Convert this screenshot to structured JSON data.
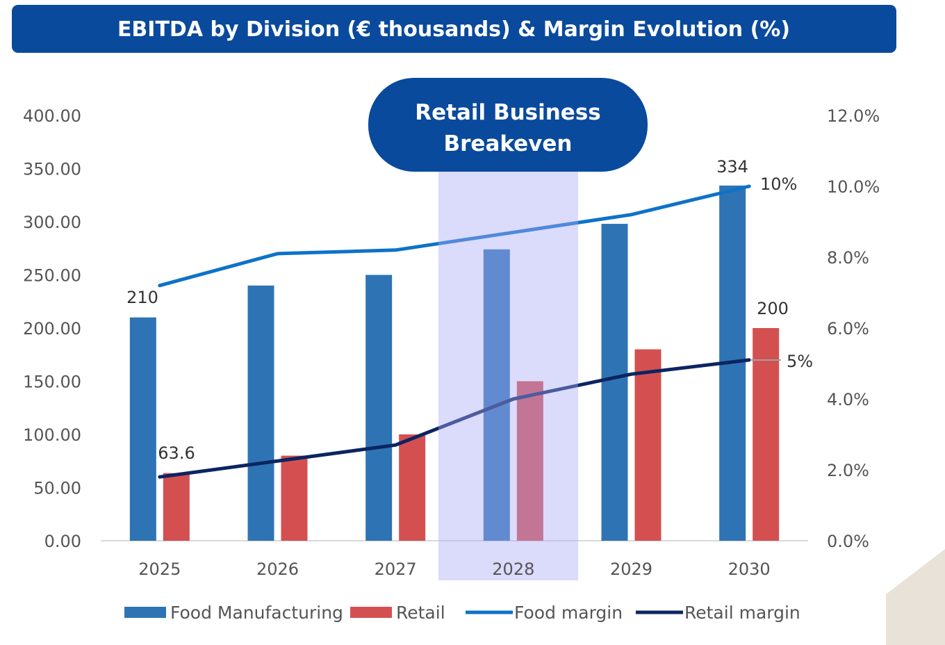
{
  "chart_data": {
    "type": "bar",
    "title": "EBITDA by Division (€ thousands) & Margin Evolution (%)",
    "categories": [
      "2025",
      "2026",
      "2027",
      "2028",
      "2029",
      "2030"
    ],
    "series": [
      {
        "name": "Food Manufacturing",
        "kind": "bar",
        "axis": "left",
        "color": "#2e74b5",
        "values": [
          210,
          240,
          250,
          274,
          298,
          334
        ]
      },
      {
        "name": "Retail",
        "kind": "bar",
        "axis": "left",
        "color": "#d45050",
        "values": [
          63.6,
          80,
          100,
          150,
          180,
          200
        ]
      },
      {
        "name": "Food margin",
        "kind": "line",
        "axis": "right",
        "color": "#0e72c8",
        "values": [
          7.2,
          8.1,
          8.2,
          8.7,
          9.2,
          10.0
        ]
      },
      {
        "name": "Retail margin",
        "kind": "line",
        "axis": "right",
        "color": "#0c2461",
        "values": [
          1.8,
          2.25,
          2.7,
          4.0,
          4.7,
          5.1
        ]
      }
    ],
    "ylim_left": [
      0,
      400
    ],
    "yticks_left": [
      "0.00",
      "50.00",
      "100.00",
      "150.00",
      "200.00",
      "250.00",
      "300.00",
      "350.00",
      "400.00"
    ],
    "ylim_right": [
      0,
      12
    ],
    "yticks_right": [
      "0.0%",
      "2.0%",
      "4.0%",
      "6.0%",
      "8.0%",
      "10.0%",
      "12.0%"
    ],
    "data_labels": {
      "food_2025": "210",
      "retail_2025": "63.6",
      "food_2030": "334",
      "retail_2030": "200",
      "food_margin_2030": "10%",
      "retail_margin_2030": "5%"
    },
    "highlight": {
      "category": "2028",
      "label_line1": "Retail Business",
      "label_line2": "Breakeven"
    },
    "legend_position": "bottom",
    "grid": false
  }
}
